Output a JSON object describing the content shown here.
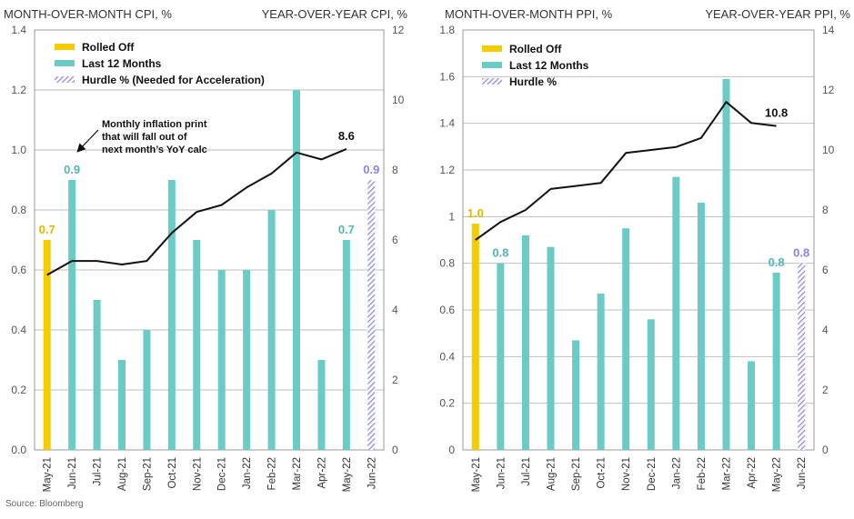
{
  "colors": {
    "rolled_off": "#F5CC00",
    "last12": "#6BCBC5",
    "hurdle": "#8A84E8",
    "line": "#111111",
    "grid": "#bfbfbf",
    "axis": "#999999"
  },
  "source": "Source: Bloomberg",
  "chart_data": [
    {
      "type": "bar+line",
      "title_left": "MONTH-OVER-MONTH CPI, %",
      "title_right": "YEAR-OVER-YEAR  CPI, %",
      "categories": [
        "May-21",
        "Jun-21",
        "Jul-21",
        "Aug-21",
        "Sep-21",
        "Oct-21",
        "Nov-21",
        "Dec-21",
        "Jan-22",
        "Feb-22",
        "Mar-22",
        "Apr-22",
        "May-22",
        "Jun-22"
      ],
      "bar_roles": [
        "rolled_off",
        "last12",
        "last12",
        "last12",
        "last12",
        "last12",
        "last12",
        "last12",
        "last12",
        "last12",
        "last12",
        "last12",
        "last12",
        "hurdle"
      ],
      "bar_values": [
        0.7,
        0.9,
        0.5,
        0.3,
        0.4,
        0.9,
        0.7,
        0.6,
        0.6,
        0.8,
        1.2,
        0.3,
        0.7,
        0.9
      ],
      "line_values": [
        5.0,
        5.4,
        5.4,
        5.3,
        5.4,
        6.2,
        6.8,
        7.0,
        7.5,
        7.9,
        8.5,
        8.3,
        8.6,
        null
      ],
      "ylim_left": [
        0,
        1.4
      ],
      "yticks_left": [
        0.0,
        0.2,
        0.4,
        0.6,
        0.8,
        1.0,
        1.2,
        1.4
      ],
      "ytick_labels_left": [
        "0.0",
        "0.2",
        "0.4",
        "0.6",
        "0.8",
        "1.0",
        "1.2",
        "1.4"
      ],
      "ylim_right": [
        0,
        12
      ],
      "yticks_right": [
        0,
        2,
        4,
        6,
        8,
        10,
        12
      ],
      "ytick_labels_right": [
        "0",
        "2",
        "4",
        "6",
        "8",
        "10",
        "12"
      ],
      "legend": [
        {
          "role": "rolled_off",
          "label": "Rolled Off"
        },
        {
          "role": "last12",
          "label": "Last 12 Months"
        },
        {
          "role": "hurdle",
          "label": "Hurdle % (Needed for Acceleration)"
        }
      ],
      "data_labels": [
        {
          "index": 0,
          "text": "0.7",
          "role": "rolled_off"
        },
        {
          "index": 1,
          "text": "0.9",
          "role": "last12"
        },
        {
          "index": 12,
          "text": "0.7",
          "role": "last12"
        },
        {
          "index": 13,
          "text": "0.9",
          "role": "hurdle"
        }
      ],
      "line_label": {
        "index": 12,
        "text": "8.6"
      },
      "annotation": {
        "lines": [
          "Monthly inflation print",
          "that will fall out of",
          "next month’s YoY calc"
        ]
      }
    },
    {
      "type": "bar+line",
      "title_left": "MONTH-OVER-MONTH PPI, %",
      "title_right": "YEAR-OVER-YEAR PPI, %",
      "categories": [
        "May-21",
        "Jun-21",
        "Jul-21",
        "Aug-21",
        "Sep-21",
        "Oct-21",
        "Nov-21",
        "Dec-21",
        "Jan-22",
        "Feb-22",
        "Mar-22",
        "Apr-22",
        "May-22",
        "Jun-22"
      ],
      "bar_roles": [
        "rolled_off",
        "last12",
        "last12",
        "last12",
        "last12",
        "last12",
        "last12",
        "last12",
        "last12",
        "last12",
        "last12",
        "last12",
        "last12",
        "hurdle"
      ],
      "bar_values": [
        0.97,
        0.8,
        0.92,
        0.87,
        0.47,
        0.67,
        0.95,
        0.56,
        1.17,
        1.06,
        1.59,
        0.38,
        0.76,
        0.8
      ],
      "line_values": [
        7.0,
        7.6,
        8.0,
        8.7,
        8.8,
        8.9,
        9.9,
        10.0,
        10.1,
        10.4,
        11.6,
        10.9,
        10.8,
        null
      ],
      "ylim_left": [
        0,
        1.8
      ],
      "yticks_left": [
        0,
        0.2,
        0.4,
        0.6,
        0.8,
        1.0,
        1.2,
        1.4,
        1.6,
        1.8
      ],
      "ytick_labels_left": [
        "0",
        "0.2",
        "0.4",
        "0.6",
        "0.8",
        "1",
        "1.2",
        "1.4",
        "1.6",
        "1.8"
      ],
      "ylim_right": [
        0,
        14
      ],
      "yticks_right": [
        0,
        2,
        4,
        6,
        8,
        10,
        12,
        14
      ],
      "ytick_labels_right": [
        "0",
        "2",
        "4",
        "6",
        "8",
        "10",
        "12",
        "14"
      ],
      "legend": [
        {
          "role": "rolled_off",
          "label": "Rolled Off"
        },
        {
          "role": "last12",
          "label": "Last 12 Months"
        },
        {
          "role": "hurdle",
          "label": "Hurdle %"
        }
      ],
      "data_labels": [
        {
          "index": 0,
          "text": "1.0",
          "role": "rolled_off"
        },
        {
          "index": 1,
          "text": "0.8",
          "role": "last12"
        },
        {
          "index": 12,
          "text": "0.8",
          "role": "last12"
        },
        {
          "index": 13,
          "text": "0.8",
          "role": "hurdle"
        }
      ],
      "line_label": {
        "index": 12,
        "text": "10.8"
      },
      "annotation": null
    }
  ]
}
